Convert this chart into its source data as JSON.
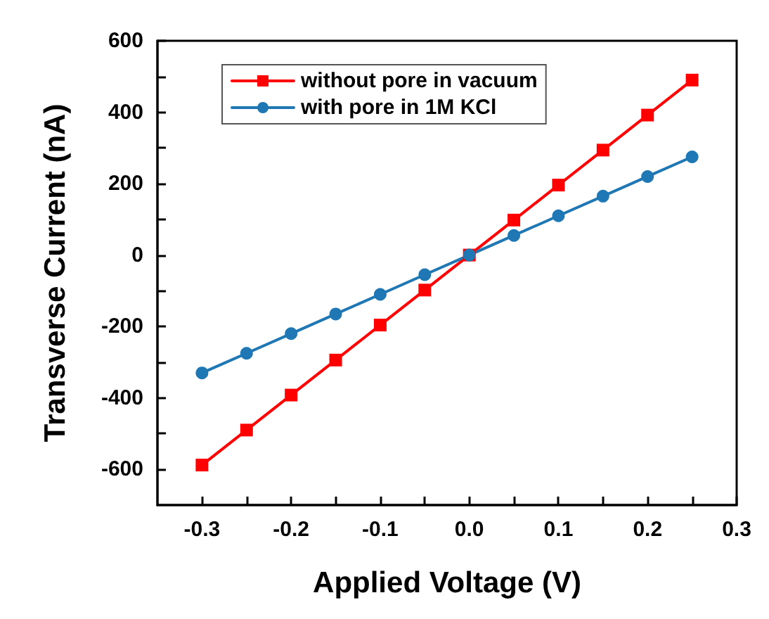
{
  "chart_data": {
    "type": "line",
    "xlabel": "Applied Voltage (V)",
    "ylabel": "Transverse Current (nA)",
    "x": [
      -0.3,
      -0.25,
      -0.2,
      -0.15,
      -0.1,
      -0.05,
      0,
      0.05,
      0.1,
      0.15,
      0.2,
      0.25
    ],
    "series": [
      {
        "name": "without pore in vacuum",
        "color": "#ff0000",
        "marker": "square",
        "values": [
          -588,
          -490,
          -392,
          -294,
          -196,
          -98,
          0,
          98,
          196,
          294,
          392,
          490
        ]
      },
      {
        "name": "with pore in 1M KCl",
        "color": "#1f77b4",
        "marker": "circle",
        "values": [
          -330,
          -275,
          -220,
          -165,
          -110,
          -55,
          0,
          55,
          110,
          165,
          220,
          275
        ]
      }
    ],
    "xlim": [
      -0.35,
      0.3
    ],
    "xticks": [
      -0.3,
      {
        "value": -0.25,
        "label": null
      },
      -0.2,
      {
        "value": -0.15,
        "label": null
      },
      -0.1,
      {
        "value": -0.05,
        "label": null
      },
      {
        "value": 0,
        "label": "0.0"
      },
      {
        "value": 0.05,
        "label": null
      },
      0.1,
      {
        "value": 0.15,
        "label": null
      },
      0.2,
      {
        "value": 0.25,
        "label": null
      },
      0.3
    ],
    "ylim": [
      -700,
      600
    ],
    "yticks": [
      -600,
      {
        "value": -500,
        "label": null
      },
      -400,
      {
        "value": -300,
        "label": null
      },
      -200,
      {
        "value": -100,
        "label": null
      },
      0,
      {
        "value": 100,
        "label": null
      },
      200,
      {
        "value": 300,
        "label": null
      },
      400,
      {
        "value": 500,
        "label": null
      },
      600
    ],
    "legend": "top left",
    "grid": false,
    "line_style": "solid"
  }
}
